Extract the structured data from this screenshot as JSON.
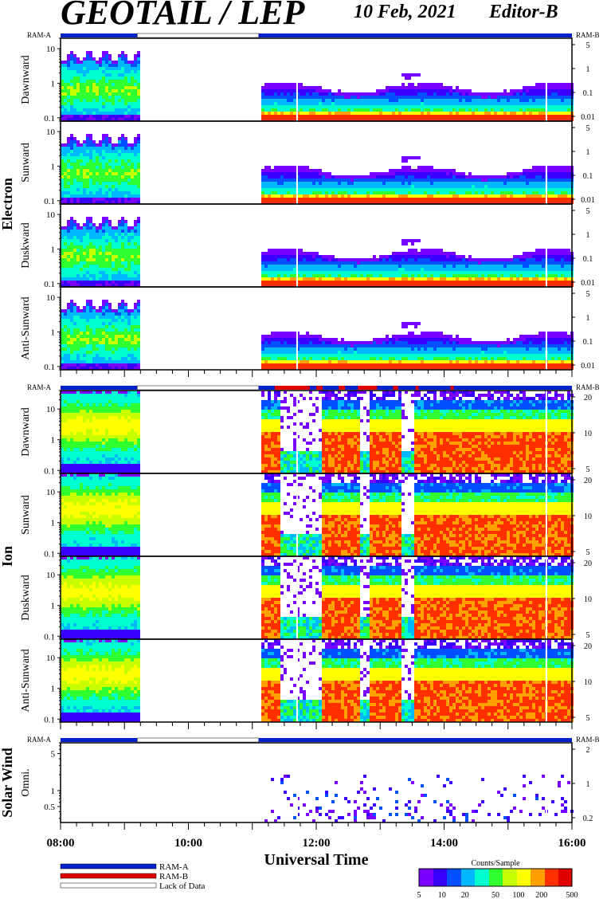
{
  "header": {
    "title": "GEOTAIL / LEP",
    "date": "10 Feb, 2021",
    "editor": "Editor-B"
  },
  "colors": {
    "ram_a": "#0022cc",
    "ram_b": "#e00000",
    "lack_of_data": "#ffffff",
    "colorbar": [
      "#7a00ff",
      "#3a00ff",
      "#0050ff",
      "#00b8ff",
      "#00ffd0",
      "#30ff30",
      "#c8ff00",
      "#ffff00",
      "#ffa000",
      "#ff3000",
      "#e00000"
    ]
  },
  "chart_data": {
    "type": "heatmap",
    "xlabel": "Universal Time",
    "x_ticks": [
      "08:00",
      "10:00",
      "12:00",
      "14:00",
      "16:00"
    ],
    "time_range_hours": [
      8,
      16
    ],
    "data_gaps": [
      [
        9.2,
        11.1
      ]
    ],
    "groups": [
      {
        "name": "Electron",
        "ram_a_label": "RAM-A",
        "ram_b_label": "RAM-B",
        "left_ticks": [
          "10",
          "1",
          "0.1"
        ],
        "left_range": [
          0.08,
          20
        ],
        "right_ticks": [
          "5",
          "1",
          "0.1",
          "0.01"
        ],
        "panels": [
          "Dawnward",
          "Sunward",
          "Duskward",
          "Anti-Sunward"
        ]
      },
      {
        "name": "Ion",
        "ram_a_label": "RAM-A",
        "ram_b_label": "RAM-B",
        "left_ticks": [
          "10",
          "1",
          "0.1"
        ],
        "left_range": [
          0.08,
          40
        ],
        "right_ticks": [
          "20",
          "10",
          "5"
        ],
        "panels": [
          "Dawnward",
          "Sunward",
          "Duskward",
          "Anti-Sunward"
        ]
      },
      {
        "name": "Solar Wind",
        "ram_a_label": "RAM-A",
        "ram_b_label": "RAM-B",
        "left_ticks": [
          "5",
          "1",
          "0.5"
        ],
        "left_range": [
          0.25,
          8
        ],
        "right_ticks": [
          "2",
          "1",
          "0.2"
        ],
        "panels": [
          "Omni."
        ]
      }
    ],
    "colorbar": {
      "label": "Counts/Sample",
      "ticks": [
        "5",
        "10",
        "20",
        "50",
        "100",
        "200",
        "500"
      ],
      "range": [
        5,
        500
      ],
      "scale": "log"
    }
  },
  "legend": {
    "ram_a": "RAM-A",
    "ram_b": "RAM-B",
    "lack": "Lack of Data"
  }
}
